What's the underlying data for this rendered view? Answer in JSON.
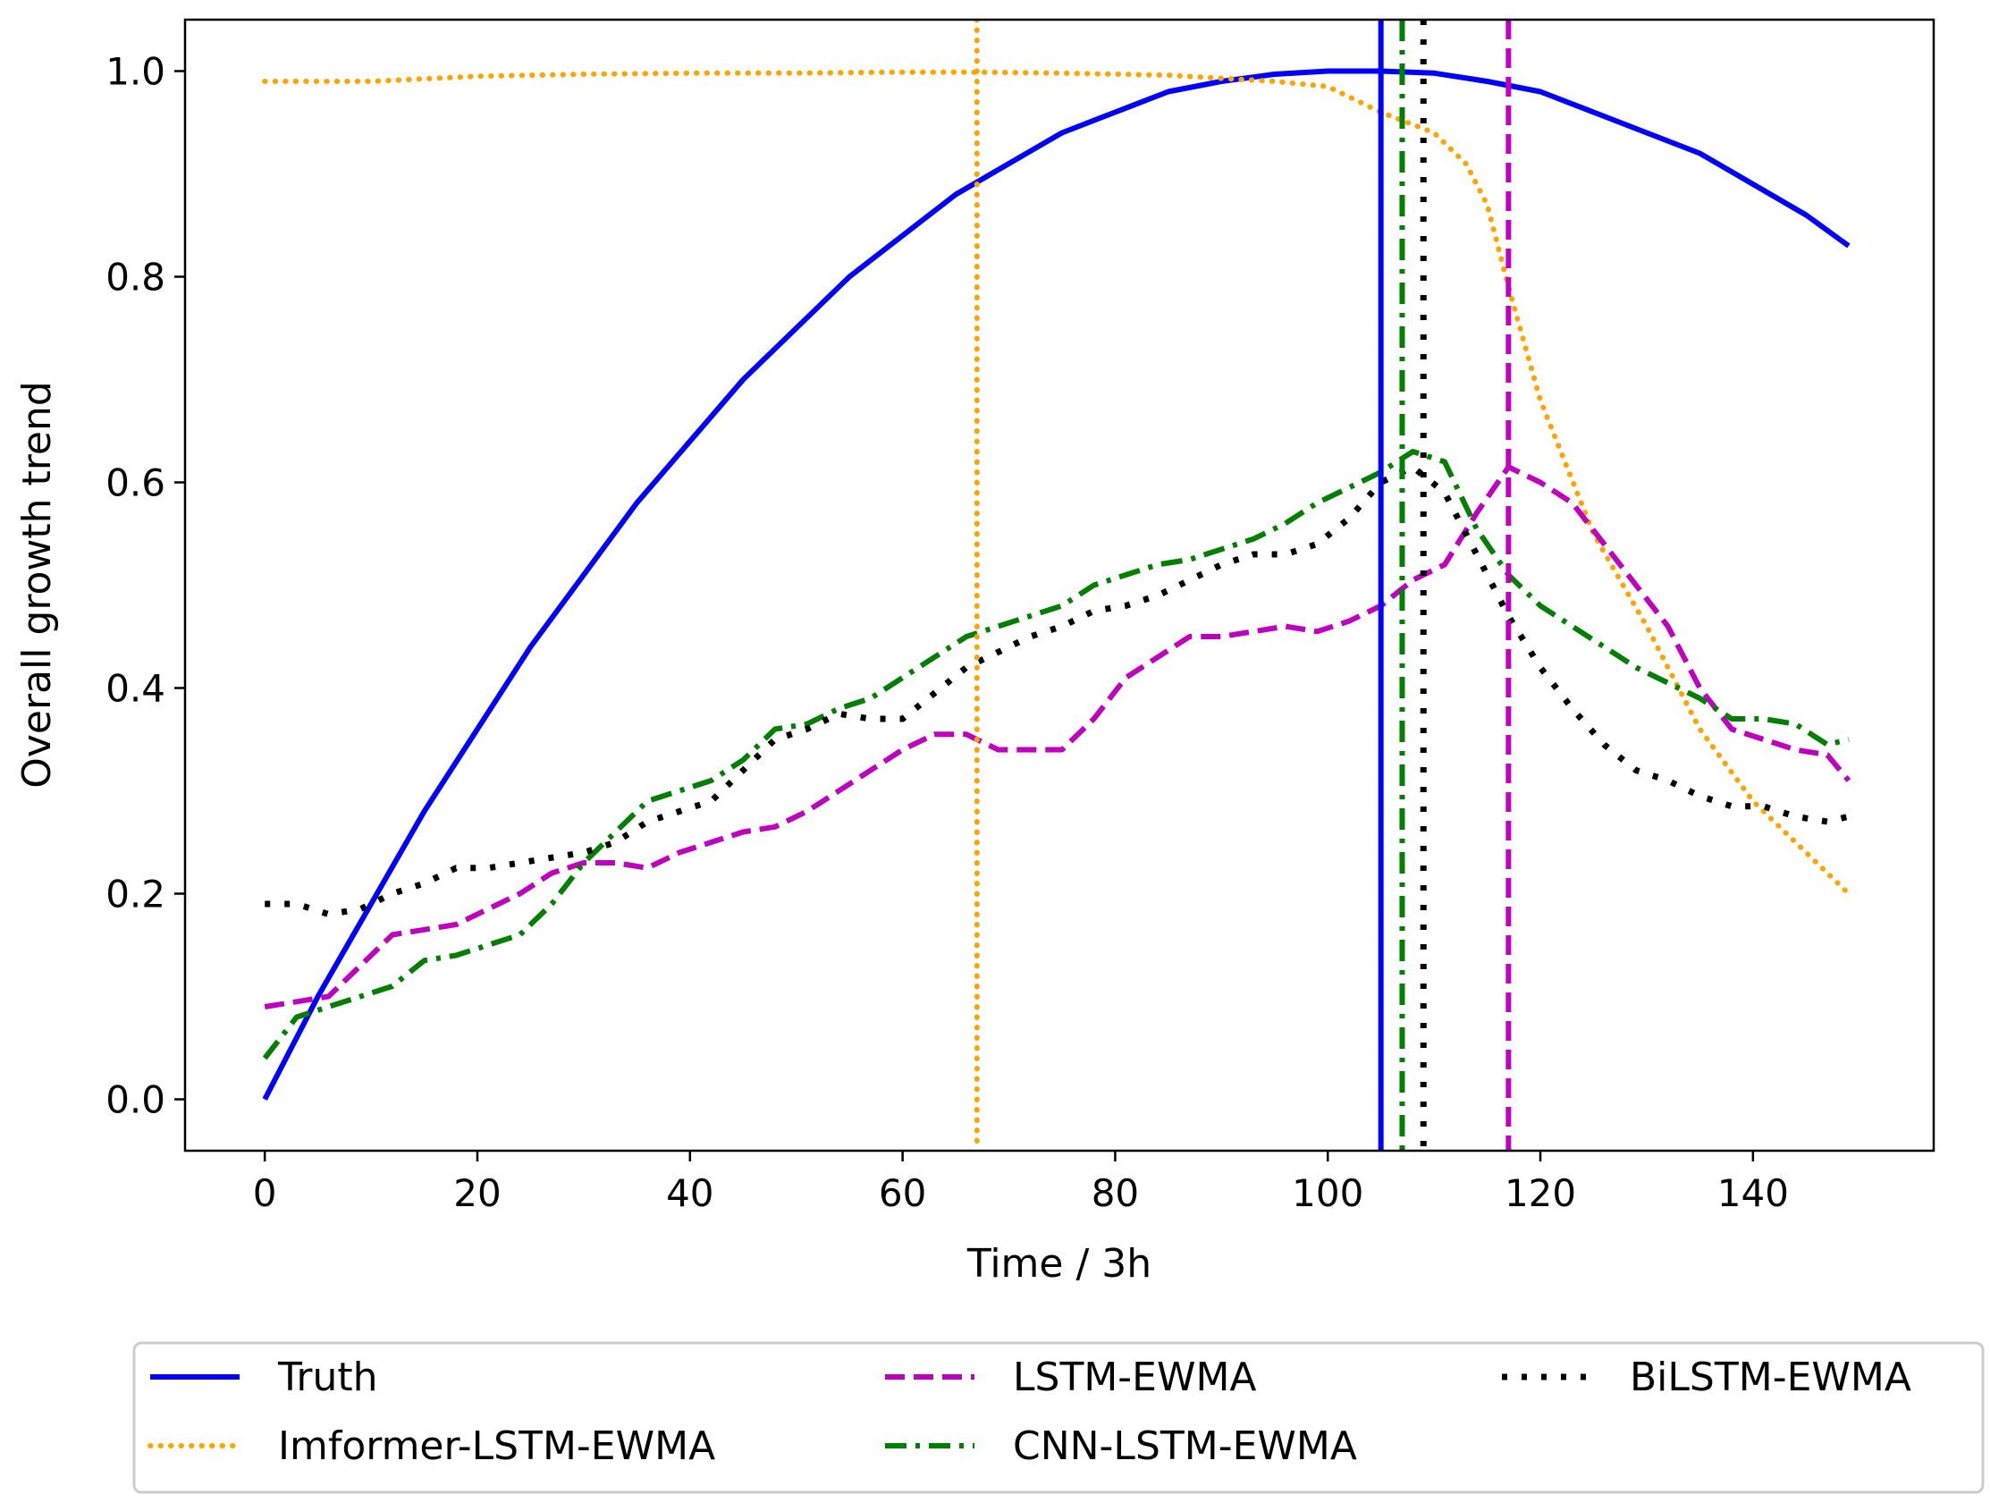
{
  "chart_data": {
    "type": "line",
    "title": "",
    "xlabel": "Time / 3h",
    "ylabel": "Overall growth trend",
    "xlim": [
      -7.5,
      157
    ],
    "ylim": [
      -0.05,
      1.05
    ],
    "xticks": [
      0,
      20,
      40,
      60,
      80,
      100,
      120,
      140
    ],
    "xtick_labels": [
      "0",
      "20",
      "40",
      "60",
      "80",
      "100",
      "120",
      "140"
    ],
    "yticks": [
      0.0,
      0.2,
      0.4,
      0.6,
      0.8,
      1.0
    ],
    "ytick_labels": [
      "0.0",
      "0.2",
      "0.4",
      "0.6",
      "0.8",
      "1.0"
    ],
    "grid": false,
    "legend_position": "bottom, below axes, 3 columns",
    "series": [
      {
        "name": "Truth",
        "color": "#0000ff",
        "style": "solid",
        "x": [
          0,
          5,
          10,
          15,
          20,
          25,
          30,
          35,
          40,
          45,
          50,
          55,
          60,
          65,
          70,
          75,
          80,
          85,
          90,
          95,
          100,
          105,
          110,
          115,
          120,
          125,
          130,
          135,
          140,
          145,
          149
        ],
        "y": [
          0.0,
          0.1,
          0.19,
          0.28,
          0.36,
          0.44,
          0.51,
          0.58,
          0.64,
          0.7,
          0.75,
          0.8,
          0.84,
          0.88,
          0.91,
          0.94,
          0.96,
          0.98,
          0.99,
          0.997,
          1.0,
          1.0,
          0.998,
          0.99,
          0.98,
          0.96,
          0.94,
          0.92,
          0.89,
          0.86,
          0.83
        ],
        "vline": 105
      },
      {
        "name": "Imformer-LSTM-EWMA",
        "color": "#ffa500",
        "style": "dotted",
        "x": [
          0,
          10,
          20,
          30,
          40,
          50,
          60,
          67,
          75,
          85,
          95,
          100,
          105,
          110,
          113,
          115,
          117,
          120,
          125,
          130,
          135,
          140,
          145,
          149
        ],
        "y": [
          0.99,
          0.99,
          0.995,
          0.997,
          0.998,
          0.998,
          0.999,
          0.999,
          0.998,
          0.996,
          0.99,
          0.985,
          0.96,
          0.94,
          0.91,
          0.87,
          0.79,
          0.68,
          0.55,
          0.46,
          0.36,
          0.29,
          0.24,
          0.2
        ],
        "vline": 67
      },
      {
        "name": "LSTM-EWMA",
        "color": "#bf00bf",
        "style": "dashed",
        "x": [
          0,
          3,
          6,
          9,
          12,
          15,
          18,
          21,
          24,
          27,
          30,
          33,
          36,
          39,
          42,
          45,
          48,
          51,
          54,
          57,
          60,
          63,
          66,
          69,
          72,
          75,
          78,
          81,
          84,
          87,
          90,
          93,
          96,
          99,
          102,
          105,
          108,
          111,
          114,
          117,
          120,
          123,
          126,
          129,
          132,
          135,
          138,
          141,
          144,
          147,
          149
        ],
        "y": [
          0.09,
          0.095,
          0.1,
          0.13,
          0.16,
          0.165,
          0.17,
          0.185,
          0.2,
          0.22,
          0.23,
          0.23,
          0.225,
          0.24,
          0.25,
          0.26,
          0.265,
          0.28,
          0.3,
          0.32,
          0.34,
          0.355,
          0.355,
          0.34,
          0.34,
          0.34,
          0.37,
          0.41,
          0.43,
          0.45,
          0.45,
          0.455,
          0.46,
          0.455,
          0.465,
          0.48,
          0.505,
          0.52,
          0.57,
          0.615,
          0.6,
          0.58,
          0.54,
          0.5,
          0.46,
          0.4,
          0.36,
          0.35,
          0.34,
          0.335,
          0.31
        ],
        "vline": 117
      },
      {
        "name": "CNN-LSTM-EWMA",
        "color": "#007f00",
        "style": "dashdot",
        "x": [
          0,
          3,
          6,
          9,
          12,
          15,
          18,
          21,
          24,
          27,
          30,
          33,
          36,
          39,
          42,
          45,
          48,
          51,
          54,
          57,
          60,
          63,
          66,
          69,
          72,
          75,
          78,
          81,
          84,
          87,
          90,
          93,
          96,
          99,
          102,
          105,
          108,
          111,
          114,
          117,
          120,
          123,
          126,
          129,
          132,
          135,
          138,
          141,
          144,
          147,
          149
        ],
        "y": [
          0.04,
          0.08,
          0.09,
          0.1,
          0.11,
          0.135,
          0.14,
          0.15,
          0.16,
          0.19,
          0.23,
          0.26,
          0.29,
          0.3,
          0.31,
          0.33,
          0.36,
          0.365,
          0.38,
          0.39,
          0.41,
          0.43,
          0.45,
          0.46,
          0.47,
          0.48,
          0.5,
          0.51,
          0.52,
          0.525,
          0.535,
          0.545,
          0.56,
          0.58,
          0.595,
          0.61,
          0.63,
          0.62,
          0.555,
          0.51,
          0.48,
          0.46,
          0.44,
          0.42,
          0.405,
          0.39,
          0.37,
          0.37,
          0.365,
          0.345,
          0.35
        ],
        "vline": 107
      },
      {
        "name": "BiLSTM-EWMA",
        "color": "#000000",
        "style": "dotted-bold",
        "x": [
          0,
          3,
          6,
          9,
          12,
          15,
          18,
          21,
          24,
          27,
          30,
          33,
          36,
          39,
          42,
          45,
          48,
          51,
          54,
          57,
          60,
          63,
          66,
          69,
          72,
          75,
          78,
          81,
          84,
          87,
          90,
          93,
          96,
          99,
          102,
          105,
          108,
          111,
          114,
          117,
          120,
          123,
          126,
          129,
          132,
          135,
          138,
          141,
          144,
          147,
          149
        ],
        "y": [
          0.19,
          0.19,
          0.18,
          0.185,
          0.2,
          0.21,
          0.225,
          0.225,
          0.23,
          0.235,
          0.24,
          0.25,
          0.27,
          0.28,
          0.29,
          0.32,
          0.35,
          0.36,
          0.375,
          0.37,
          0.37,
          0.395,
          0.42,
          0.435,
          0.45,
          0.46,
          0.475,
          0.48,
          0.49,
          0.505,
          0.52,
          0.53,
          0.53,
          0.54,
          0.565,
          0.6,
          0.615,
          0.59,
          0.53,
          0.47,
          0.42,
          0.38,
          0.345,
          0.32,
          0.31,
          0.295,
          0.285,
          0.285,
          0.275,
          0.27,
          0.275
        ],
        "vline": 109
      }
    ]
  }
}
